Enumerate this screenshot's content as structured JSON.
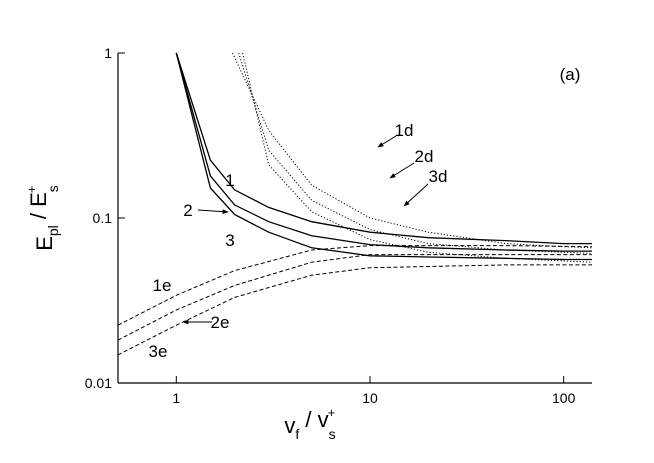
{
  "chart_data": {
    "type": "line",
    "xlabel": [
      "v",
      "f",
      " / v",
      "s",
      "+"
    ],
    "ylabel": [
      "E",
      "pl",
      " / E",
      "s",
      "+"
    ],
    "annotation": "(a)",
    "log_x": true,
    "log_y": true,
    "xlim": [
      0.5,
      140
    ],
    "ylim": [
      0.01,
      1
    ],
    "xticks": [
      1,
      10,
      100
    ],
    "yticks": [
      0.01,
      0.1,
      1
    ],
    "series": [
      {
        "name": "1",
        "style": "solid",
        "color": "#000000",
        "x": [
          1,
          1.5,
          2,
          3,
          5,
          10,
          20,
          50,
          100,
          140
        ],
        "values": [
          1,
          0.224,
          0.148,
          0.116,
          0.095,
          0.082,
          0.076,
          0.073,
          0.07,
          0.07
        ]
      },
      {
        "name": "2",
        "style": "solid",
        "color": "#000000",
        "x": [
          1,
          1.5,
          2,
          3,
          5,
          10,
          20,
          50,
          100,
          140
        ],
        "values": [
          1,
          0.18,
          0.12,
          0.095,
          0.078,
          0.069,
          0.066,
          0.064,
          0.063,
          0.063
        ]
      },
      {
        "name": "3",
        "style": "solid",
        "color": "#000000",
        "x": [
          1,
          1.5,
          2,
          3,
          5,
          10,
          20,
          50,
          100,
          140
        ],
        "values": [
          1,
          0.152,
          0.105,
          0.082,
          0.066,
          0.059,
          0.058,
          0.057,
          0.056,
          0.056
        ]
      },
      {
        "name": "1d",
        "style": "dotted",
        "color": "#000000",
        "x": [
          1.95,
          3,
          5,
          10,
          20,
          50,
          100,
          140
        ],
        "values": [
          1,
          0.34,
          0.158,
          0.1,
          0.082,
          0.07,
          0.067,
          0.066
        ]
      },
      {
        "name": "2d",
        "style": "dotted",
        "color": "#000000",
        "x": [
          2.1,
          3,
          5,
          10,
          20,
          50,
          140
        ],
        "values": [
          1,
          0.258,
          0.128,
          0.085,
          0.07,
          0.064,
          0.061
        ]
      },
      {
        "name": "3d",
        "style": "dotted",
        "color": "#000000",
        "x": [
          2.2,
          3,
          5,
          10,
          20,
          50,
          140
        ],
        "values": [
          1,
          0.21,
          0.109,
          0.074,
          0.062,
          0.057,
          0.054
        ]
      },
      {
        "name": "1e",
        "style": "dashed",
        "color": "#000000",
        "x": [
          0.5,
          1,
          2,
          5,
          10,
          20,
          50,
          140
        ],
        "values": [
          0.0224,
          0.034,
          0.048,
          0.064,
          0.068,
          0.068,
          0.068,
          0.067
        ]
      },
      {
        "name": "2e",
        "style": "dashed",
        "color": "#000000",
        "x": [
          0.5,
          1,
          2,
          5,
          10,
          50,
          140
        ],
        "values": [
          0.0182,
          0.0277,
          0.039,
          0.054,
          0.06,
          0.06,
          0.06
        ]
      },
      {
        "name": "3e",
        "style": "dashed",
        "color": "#000000",
        "x": [
          0.5,
          1,
          2,
          5,
          10,
          50,
          140
        ],
        "values": [
          0.0148,
          0.0224,
          0.033,
          0.045,
          0.05,
          0.052,
          0.052
        ]
      }
    ]
  }
}
